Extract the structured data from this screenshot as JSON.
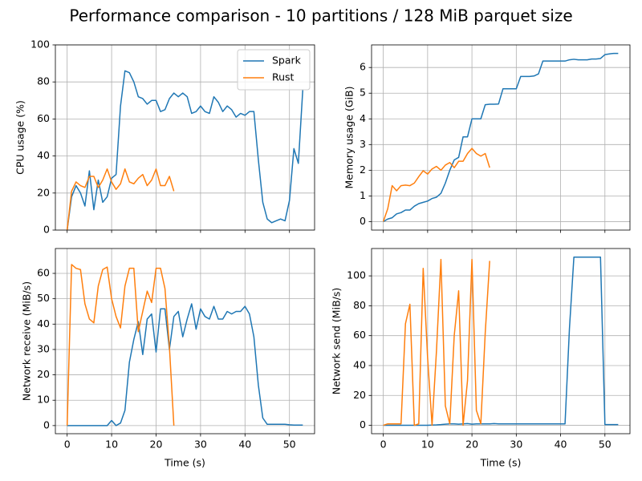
{
  "title": "Performance comparison - 10 partitions / 128 MiB parquet size",
  "chart_data": [
    {
      "type": "line",
      "ylabel": "CPU usage (%)",
      "xlim": [
        -2.65,
        55.65
      ],
      "ylim": [
        0,
        100
      ],
      "xticks": [
        0,
        10,
        20,
        30,
        40,
        50
      ],
      "yticks": [
        0,
        20,
        40,
        60,
        80,
        100
      ],
      "grid": true,
      "legend": "upper right",
      "series": [
        {
          "name": "Spark",
          "color": "#1f77b4",
          "x": [
            0,
            1,
            2,
            3,
            4,
            5,
            6,
            7,
            8,
            9,
            10,
            11,
            12,
            13,
            14,
            15,
            16,
            17,
            18,
            19,
            20,
            21,
            22,
            23,
            24,
            25,
            26,
            27,
            28,
            29,
            30,
            31,
            32,
            33,
            34,
            35,
            36,
            37,
            38,
            39,
            40,
            41,
            42,
            43,
            44,
            45,
            46,
            47,
            48,
            49,
            50,
            51,
            52,
            53
          ],
          "values": [
            0,
            18,
            24,
            20,
            13,
            32,
            11,
            27,
            15,
            18,
            28,
            30,
            67,
            86,
            85,
            80,
            72,
            71,
            68,
            70,
            70,
            64,
            65,
            71,
            74,
            72,
            74,
            72,
            63,
            64,
            67,
            64,
            63,
            72,
            69,
            64,
            67,
            65,
            61,
            63,
            62,
            64,
            64,
            38,
            15,
            6,
            4,
            5,
            6,
            5,
            16,
            44,
            36,
            76
          ]
        },
        {
          "name": "Rust",
          "color": "#ff7f0e",
          "x": [
            0,
            1,
            2,
            3,
            4,
            5,
            6,
            7,
            8,
            9,
            10,
            11,
            12,
            13,
            14,
            15,
            16,
            17,
            18,
            19,
            20,
            21,
            22,
            23,
            24
          ],
          "values": [
            0,
            21,
            26,
            24,
            23,
            29,
            29,
            23,
            27,
            33,
            26,
            22,
            25,
            33,
            26,
            25,
            28,
            30,
            24,
            27,
            33,
            24,
            24,
            29,
            21
          ]
        }
      ]
    },
    {
      "type": "line",
      "ylabel": "Memory usage (GiB)",
      "xlim": [
        -2.65,
        55.65
      ],
      "ylim": [
        -0.33,
        6.88
      ],
      "xticks": [
        0,
        10,
        20,
        30,
        40,
        50
      ],
      "yticks": [
        0,
        1,
        2,
        3,
        4,
        5,
        6
      ],
      "grid": true,
      "series": [
        {
          "color": "#1f77b4",
          "x": [
            0,
            1,
            2,
            3,
            4,
            5,
            6,
            7,
            8,
            9,
            10,
            11,
            12,
            13,
            14,
            15,
            16,
            17,
            18,
            19,
            20,
            21,
            22,
            23,
            24,
            25,
            26,
            27,
            28,
            29,
            30,
            31,
            32,
            33,
            34,
            35,
            36,
            37,
            38,
            39,
            40,
            41,
            42,
            43,
            44,
            45,
            46,
            47,
            48,
            49,
            50,
            51,
            52,
            53
          ],
          "values": [
            0,
            0.1,
            0.15,
            0.3,
            0.35,
            0.45,
            0.45,
            0.6,
            0.7,
            0.75,
            0.8,
            0.9,
            0.95,
            1.1,
            1.5,
            2.0,
            2.4,
            2.5,
            3.3,
            3.3,
            4.0,
            4.0,
            4.0,
            4.55,
            4.57,
            4.57,
            4.58,
            5.17,
            5.17,
            5.17,
            5.17,
            5.65,
            5.65,
            5.65,
            5.67,
            5.75,
            6.25,
            6.25,
            6.25,
            6.25,
            6.25,
            6.25,
            6.3,
            6.32,
            6.3,
            6.3,
            6.3,
            6.33,
            6.33,
            6.35,
            6.5,
            6.53,
            6.55,
            6.55
          ]
        },
        {
          "color": "#ff7f0e",
          "x": [
            0,
            1,
            2,
            3,
            4,
            5,
            6,
            7,
            8,
            9,
            10,
            11,
            12,
            13,
            14,
            15,
            16,
            17,
            18,
            19,
            20,
            21,
            22,
            23,
            24
          ],
          "values": [
            0,
            0.5,
            1.4,
            1.2,
            1.4,
            1.42,
            1.4,
            1.5,
            1.75,
            1.98,
            1.85,
            2.05,
            2.15,
            2.0,
            2.2,
            2.3,
            2.1,
            2.35,
            2.35,
            2.65,
            2.85,
            2.65,
            2.55,
            2.65,
            2.1
          ]
        }
      ]
    },
    {
      "type": "line",
      "xlabel": "Time (s)",
      "ylabel": "Network receive (MiB/s)",
      "xlim": [
        -2.65,
        55.65
      ],
      "ylim": [
        -3.2,
        69.8
      ],
      "xticks": [
        0,
        10,
        20,
        30,
        40,
        50
      ],
      "yticks": [
        0,
        10,
        20,
        30,
        40,
        50,
        60
      ],
      "grid": true,
      "series": [
        {
          "color": "#1f77b4",
          "x": [
            0,
            1,
            2,
            3,
            4,
            5,
            6,
            7,
            8,
            9,
            10,
            11,
            12,
            13,
            14,
            15,
            16,
            17,
            18,
            19,
            20,
            21,
            22,
            23,
            24,
            25,
            26,
            27,
            28,
            29,
            30,
            31,
            32,
            33,
            34,
            35,
            36,
            37,
            38,
            39,
            40,
            41,
            42,
            43,
            44,
            45,
            46,
            47,
            48,
            49,
            50,
            51,
            52,
            53
          ],
          "values": [
            0,
            0,
            0,
            0,
            0,
            0,
            0,
            0,
            0,
            0,
            2,
            0,
            1,
            6,
            25,
            34,
            41,
            28,
            42,
            44,
            29,
            46,
            46,
            30,
            43,
            45,
            35,
            42,
            48,
            38,
            46,
            43,
            42,
            47,
            42,
            42,
            45,
            44,
            45,
            45,
            47,
            44,
            35,
            16,
            3,
            0.5,
            0.5,
            0.5,
            0.5,
            0.5,
            0.3,
            0.2,
            0.2,
            0.2
          ]
        },
        {
          "color": "#ff7f0e",
          "x": [
            0,
            1,
            2,
            3,
            4,
            5,
            6,
            7,
            8,
            9,
            10,
            11,
            12,
            13,
            14,
            15,
            16,
            17,
            18,
            19,
            20,
            21,
            22,
            23,
            24
          ],
          "values": [
            0,
            63.5,
            62,
            61.5,
            48,
            42,
            40.5,
            55,
            61.5,
            62.5,
            50,
            43,
            38.5,
            55,
            62,
            62,
            37,
            45,
            53,
            48.5,
            62,
            62,
            54,
            31,
            0
          ]
        }
      ]
    },
    {
      "type": "line",
      "xlabel": "Time (s)",
      "ylabel": "Network send (MiB/s)",
      "xlim": [
        -2.65,
        55.65
      ],
      "ylim": [
        -5.6,
        118.3
      ],
      "xticks": [
        0,
        10,
        20,
        30,
        40,
        50
      ],
      "yticks": [
        0,
        20,
        40,
        60,
        80,
        100
      ],
      "grid": true,
      "series": [
        {
          "color": "#1f77b4",
          "x": [
            0,
            1,
            2,
            3,
            4,
            5,
            6,
            7,
            8,
            9,
            10,
            11,
            12,
            13,
            14,
            15,
            16,
            17,
            18,
            19,
            20,
            21,
            22,
            23,
            24,
            25,
            26,
            27,
            28,
            29,
            30,
            31,
            32,
            33,
            34,
            35,
            36,
            37,
            38,
            39,
            40,
            41,
            42,
            43,
            44,
            45,
            46,
            47,
            48,
            49,
            50,
            51,
            52,
            53
          ],
          "values": [
            0,
            0,
            0,
            0,
            0,
            0,
            0,
            0,
            0,
            0,
            0,
            0.2,
            0.3,
            0.5,
            0.8,
            1,
            1,
            0.8,
            1,
            1.2,
            0.8,
            1,
            1,
            1,
            1,
            1.2,
            1,
            1,
            1,
            1,
            1,
            1,
            1,
            1,
            1,
            1,
            1,
            1,
            1,
            1,
            1,
            1,
            65,
            112.5,
            112.5,
            112.5,
            112.5,
            112.5,
            112.5,
            112.5,
            0.5,
            0.5,
            0.5,
            0.5
          ]
        },
        {
          "color": "#ff7f0e",
          "x": [
            0,
            1,
            2,
            3,
            4,
            5,
            6,
            7,
            8,
            9,
            10,
            11,
            12,
            13,
            14,
            15,
            16,
            17,
            18,
            19,
            20,
            21,
            22,
            23,
            24
          ],
          "values": [
            0,
            1,
            1,
            1,
            1,
            68,
            81,
            0,
            1,
            105,
            45,
            0,
            50,
            111,
            13,
            1,
            60,
            90,
            0,
            30,
            111,
            10,
            1,
            62,
            110
          ]
        }
      ]
    }
  ]
}
